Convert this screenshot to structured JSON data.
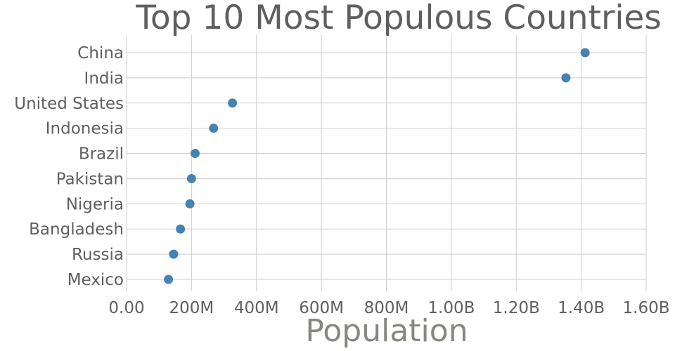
{
  "chart_data": {
    "type": "scatter",
    "title": "Top 10 Most Populous Countries",
    "xlabel": "Population",
    "ylabel": "",
    "categories": [
      "China",
      "India",
      "United States",
      "Indonesia",
      "Brazil",
      "Pakistan",
      "Nigeria",
      "Bangladesh",
      "Russia",
      "Mexico"
    ],
    "values": [
      1412000000,
      1353000000,
      326000000,
      268000000,
      211000000,
      200000000,
      195000000,
      166000000,
      145000000,
      129000000
    ],
    "xlim": [
      0,
      1600000000
    ],
    "x_ticks": [
      0,
      200000000,
      400000000,
      600000000,
      800000000,
      1000000000,
      1200000000,
      1400000000,
      1600000000
    ],
    "x_tick_labels": [
      "0.00",
      "200M",
      "400M",
      "600M",
      "800M",
      "1.00B",
      "1.20B",
      "1.40B",
      "1.60B"
    ],
    "grid": true,
    "marker_color": "#4682b4"
  }
}
